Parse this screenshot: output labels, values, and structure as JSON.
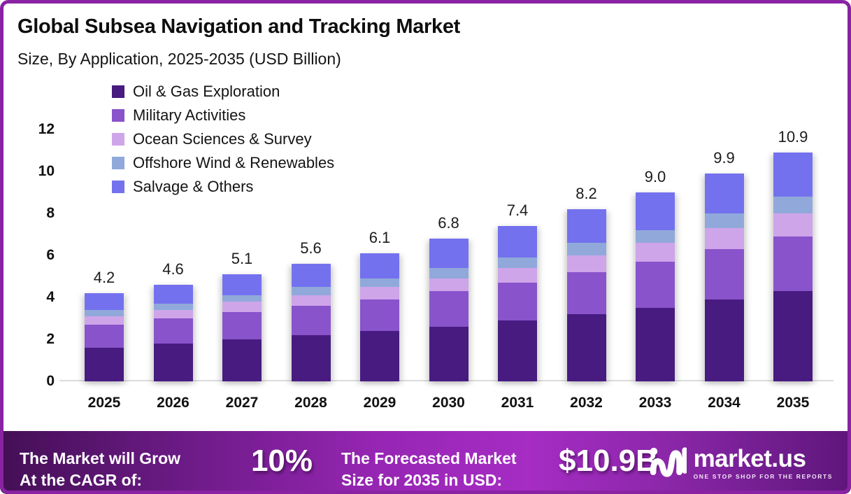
{
  "header": {
    "title": "Global Subsea Navigation and Tracking Market",
    "subtitle": "Size, By Application, 2025-2035 (USD Billion)"
  },
  "chart_data": {
    "type": "bar",
    "stacked": true,
    "title": "Global Subsea Navigation and Tracking Market",
    "subtitle": "Size, By Application, 2025-2035 (USD Billion)",
    "xlabel": "",
    "ylabel": "USD Billion",
    "categories": [
      "2025",
      "2026",
      "2027",
      "2028",
      "2029",
      "2030",
      "2031",
      "2032",
      "2033",
      "2034",
      "2035"
    ],
    "series": [
      {
        "name": "Oil & Gas Exploration",
        "color": "#471b80",
        "values": [
          1.6,
          1.8,
          2.0,
          2.2,
          2.4,
          2.6,
          2.9,
          3.2,
          3.5,
          3.9,
          4.3
        ]
      },
      {
        "name": "Military Activities",
        "color": "#8953cb",
        "values": [
          1.1,
          1.2,
          1.3,
          1.4,
          1.5,
          1.7,
          1.8,
          2.0,
          2.2,
          2.4,
          2.6
        ]
      },
      {
        "name": "Ocean Sciences & Survey",
        "color": "#cfa5e9",
        "values": [
          0.4,
          0.4,
          0.5,
          0.5,
          0.6,
          0.6,
          0.7,
          0.8,
          0.9,
          1.0,
          1.1
        ]
      },
      {
        "name": "Offshore Wind & Renewables",
        "color": "#90a9da",
        "values": [
          0.3,
          0.3,
          0.3,
          0.4,
          0.4,
          0.5,
          0.5,
          0.6,
          0.6,
          0.7,
          0.8
        ]
      },
      {
        "name": "Salvage & Others",
        "color": "#7471ef",
        "values": [
          0.8,
          0.9,
          1.0,
          1.1,
          1.2,
          1.4,
          1.5,
          1.6,
          1.8,
          1.9,
          2.1
        ]
      }
    ],
    "total_labels": [
      "4.2",
      "4.6",
      "5.1",
      "5.6",
      "6.1",
      "6.8",
      "7.4",
      "8.2",
      "9.0",
      "9.9",
      "10.9"
    ],
    "ylim": [
      0,
      12
    ],
    "yticks": [
      0,
      2,
      4,
      6,
      8,
      10,
      12
    ],
    "grid": false,
    "legend_position": "top-left"
  },
  "banner": {
    "cagr_label_line1": "The Market will Grow",
    "cagr_label_line2": "At the CAGR of:",
    "cagr_value": "10%",
    "forecast_label_line1": "The Forecasted Market",
    "forecast_label_line2": "Size for 2035 in USD:",
    "forecast_value": "$10.9B",
    "logo_text": "market.us",
    "logo_tagline": "ONE STOP SHOP FOR THE REPORTS"
  },
  "colors": {
    "frame_border": "#8a22a4",
    "axis_line": "#dcdcdc",
    "banner_gradient_start": "#440f55",
    "banner_gradient_mid": "#a62cc4",
    "banner_gradient_end": "#5e167b",
    "text": "#121212",
    "banner_text": "#ffffff"
  }
}
